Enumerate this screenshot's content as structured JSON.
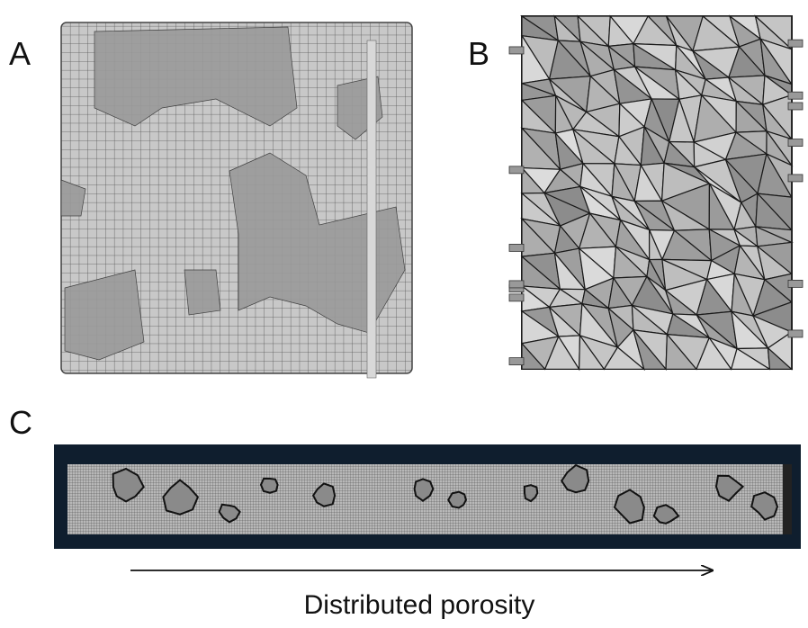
{
  "panels": [
    {
      "label": "A"
    },
    {
      "label": "B"
    },
    {
      "label": "C"
    }
  ],
  "caption": "Distributed porosity"
}
